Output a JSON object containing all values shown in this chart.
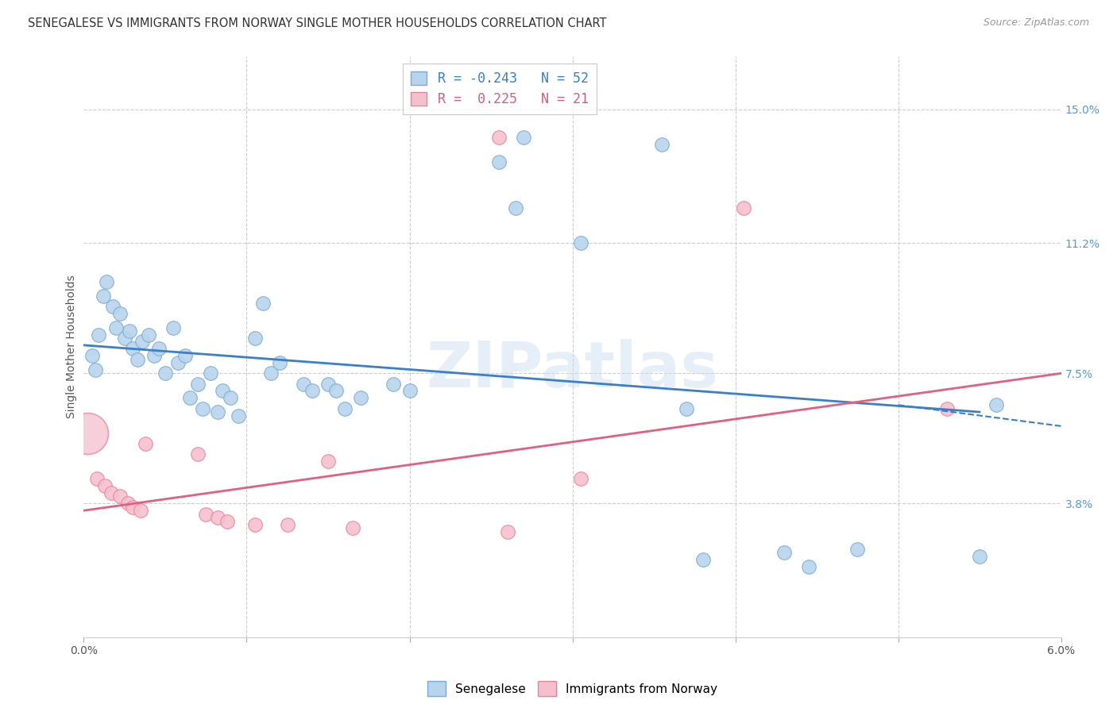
{
  "title": "SENEGALESE VS IMMIGRANTS FROM NORWAY SINGLE MOTHER HOUSEHOLDS CORRELATION CHART",
  "source": "Source: ZipAtlas.com",
  "ylabel": "Single Mother Households",
  "x_min": 0.0,
  "x_max": 6.0,
  "y_min": 0.0,
  "y_max": 16.5,
  "y_ticks_right": [
    3.8,
    7.5,
    11.2,
    15.0
  ],
  "y_tick_labels_right": [
    "3.8%",
    "7.5%",
    "11.2%",
    "15.0%"
  ],
  "x_ticks": [
    0.0,
    1.0,
    2.0,
    3.0,
    4.0,
    5.0,
    6.0
  ],
  "x_tick_labels": [
    "0.0%",
    "",
    "",
    "",
    "",
    "",
    "6.0%"
  ],
  "blue_color": "#b8d4ed",
  "blue_edge_color": "#7aadd4",
  "pink_color": "#f5c0ce",
  "pink_edge_color": "#e8849a",
  "watermark": "ZIPatlas",
  "blue_line": [
    [
      0.0,
      8.3
    ],
    [
      5.5,
      6.4
    ]
  ],
  "pink_line": [
    [
      0.0,
      3.6
    ],
    [
      6.0,
      7.5
    ]
  ],
  "dashed_line": [
    [
      5.0,
      6.6
    ],
    [
      6.0,
      6.0
    ]
  ],
  "blue_points": [
    [
      0.05,
      8.0
    ],
    [
      0.07,
      7.6
    ],
    [
      0.09,
      8.6
    ],
    [
      0.12,
      9.7
    ],
    [
      0.14,
      10.1
    ],
    [
      0.18,
      9.4
    ],
    [
      0.2,
      8.8
    ],
    [
      0.22,
      9.2
    ],
    [
      0.25,
      8.5
    ],
    [
      0.28,
      8.7
    ],
    [
      0.3,
      8.2
    ],
    [
      0.33,
      7.9
    ],
    [
      0.36,
      8.4
    ],
    [
      0.4,
      8.6
    ],
    [
      0.43,
      8.0
    ],
    [
      0.46,
      8.2
    ],
    [
      0.5,
      7.5
    ],
    [
      0.55,
      8.8
    ],
    [
      0.58,
      7.8
    ],
    [
      0.62,
      8.0
    ],
    [
      0.65,
      6.8
    ],
    [
      0.7,
      7.2
    ],
    [
      0.73,
      6.5
    ],
    [
      0.78,
      7.5
    ],
    [
      0.82,
      6.4
    ],
    [
      0.85,
      7.0
    ],
    [
      0.9,
      6.8
    ],
    [
      0.95,
      6.3
    ],
    [
      1.05,
      8.5
    ],
    [
      1.1,
      9.5
    ],
    [
      1.15,
      7.5
    ],
    [
      1.2,
      7.8
    ],
    [
      1.35,
      7.2
    ],
    [
      1.4,
      7.0
    ],
    [
      1.5,
      7.2
    ],
    [
      1.55,
      7.0
    ],
    [
      1.6,
      6.5
    ],
    [
      1.7,
      6.8
    ],
    [
      1.9,
      7.2
    ],
    [
      2.0,
      7.0
    ],
    [
      2.55,
      13.5
    ],
    [
      2.65,
      12.2
    ],
    [
      2.7,
      14.2
    ],
    [
      3.05,
      11.2
    ],
    [
      3.55,
      14.0
    ],
    [
      3.7,
      6.5
    ],
    [
      3.8,
      2.2
    ],
    [
      4.3,
      2.4
    ],
    [
      4.45,
      2.0
    ],
    [
      4.75,
      2.5
    ],
    [
      5.5,
      2.3
    ],
    [
      5.6,
      6.6
    ]
  ],
  "pink_points": [
    [
      0.08,
      4.5
    ],
    [
      0.13,
      4.3
    ],
    [
      0.17,
      4.1
    ],
    [
      0.22,
      4.0
    ],
    [
      0.27,
      3.8
    ],
    [
      0.3,
      3.7
    ],
    [
      0.35,
      3.6
    ],
    [
      0.38,
      5.5
    ],
    [
      0.7,
      5.2
    ],
    [
      0.75,
      3.5
    ],
    [
      0.82,
      3.4
    ],
    [
      0.88,
      3.3
    ],
    [
      1.05,
      3.2
    ],
    [
      1.25,
      3.2
    ],
    [
      1.5,
      5.0
    ],
    [
      1.65,
      3.1
    ],
    [
      2.55,
      14.2
    ],
    [
      2.6,
      3.0
    ],
    [
      3.05,
      4.5
    ],
    [
      4.05,
      12.2
    ],
    [
      5.3,
      6.5
    ]
  ],
  "large_pink_x": 0.02,
  "large_pink_y": 5.8
}
